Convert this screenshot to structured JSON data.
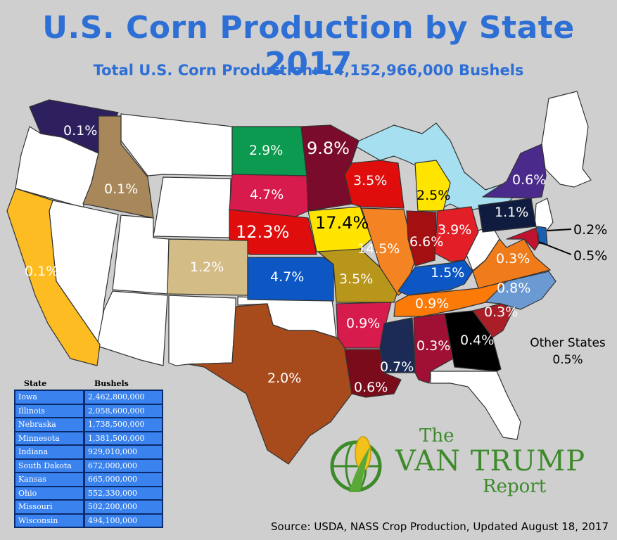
{
  "header": {
    "title": "U.S. Corn Production by State 2017",
    "subtitle": "Total U.S. Corn Production: 14,152,966,000 Bushels"
  },
  "map": {
    "states": [
      {
        "id": "WA",
        "value": "0.1%",
        "color": "#2e1f5e"
      },
      {
        "id": "ID",
        "value": "0.1%",
        "color": "#a8885a"
      },
      {
        "id": "CA",
        "value": "0.1%",
        "color": "#fdbd22"
      },
      {
        "id": "ND",
        "value": "2.9%",
        "color": "#0b9a4f"
      },
      {
        "id": "SD",
        "value": "4.7%",
        "color": "#d81b4d"
      },
      {
        "id": "NE",
        "value": "12.3%",
        "color": "#e00d0d"
      },
      {
        "id": "CO",
        "value": "1.2%",
        "color": "#d4bc86"
      },
      {
        "id": "KS",
        "value": "4.7%",
        "color": "#0c57c4"
      },
      {
        "id": "TX",
        "value": "2.0%",
        "color": "#a84b1c"
      },
      {
        "id": "MN",
        "value": "9.8%",
        "color": "#7a0b2a"
      },
      {
        "id": "IA",
        "value": "17.4%",
        "color": "#ffe400"
      },
      {
        "id": "MO",
        "value": "3.5%",
        "color": "#b8951b"
      },
      {
        "id": "AR",
        "value": "0.9%",
        "color": "#d81b4d"
      },
      {
        "id": "LA",
        "value": "0.6%",
        "color": "#7a0b1a"
      },
      {
        "id": "WI",
        "value": "3.5%",
        "color": "#e00d0d"
      },
      {
        "id": "IL",
        "value": "14.5%",
        "color": "#f48324"
      },
      {
        "id": "MI",
        "value": "2.5%",
        "color": "#ffe400"
      },
      {
        "id": "IN",
        "value": "6.6%",
        "color": "#a40f12"
      },
      {
        "id": "OH",
        "value": "3.9%",
        "color": "#e21f26"
      },
      {
        "id": "KY",
        "value": "1.5%",
        "color": "#0c57c4"
      },
      {
        "id": "TN",
        "value": "0.9%",
        "color": "#fb7a08"
      },
      {
        "id": "MS",
        "value": "0.7%",
        "color": "#1c2b55"
      },
      {
        "id": "AL",
        "value": "0.3%",
        "color": "#a01034"
      },
      {
        "id": "GA",
        "value": "0.4%",
        "color": "#000000"
      },
      {
        "id": "SC",
        "value": "0.3%",
        "color": "#a91e27"
      },
      {
        "id": "NC",
        "value": "0.8%",
        "color": "#6b99d2"
      },
      {
        "id": "VA",
        "value": "0.3%",
        "color": "#f07b1a"
      },
      {
        "id": "PA",
        "value": "1.1%",
        "color": "#0f1c3f"
      },
      {
        "id": "NY",
        "value": "0.6%",
        "color": "#4a2a8a"
      },
      {
        "id": "DE",
        "value": "0.2%",
        "color": "#1a5fb4"
      },
      {
        "id": "MD",
        "value": "0.5%",
        "color": "#c1122f"
      }
    ],
    "other_states": {
      "label": "Other States",
      "value": "0.5%"
    }
  },
  "table": {
    "headers": {
      "state": "State",
      "bushels": "Bushels"
    },
    "rows": [
      {
        "state": "Iowa",
        "bushels": "2,462,800,000"
      },
      {
        "state": "Illinois",
        "bushels": "2,058,600,000"
      },
      {
        "state": "Nebraska",
        "bushels": "1,738,500,000"
      },
      {
        "state": "Minnesota",
        "bushels": "1,381,500,000"
      },
      {
        "state": "Indiana",
        "bushels": "929,010,000"
      },
      {
        "state": "South Dakota",
        "bushels": "672,000,000"
      },
      {
        "state": "Kansas",
        "bushels": "665,000,000"
      },
      {
        "state": "Ohio",
        "bushels": "552,330,000"
      },
      {
        "state": "Missouri",
        "bushels": "502,200,000"
      },
      {
        "state": "Wisconsin",
        "bushels": "494,100,000"
      }
    ]
  },
  "logo": {
    "line1": "The",
    "line2": "VAN TRUMP",
    "line3": "Report"
  },
  "footer": {
    "source": "Source: USDA, NASS Crop Production, Updated August 18, 2017"
  }
}
